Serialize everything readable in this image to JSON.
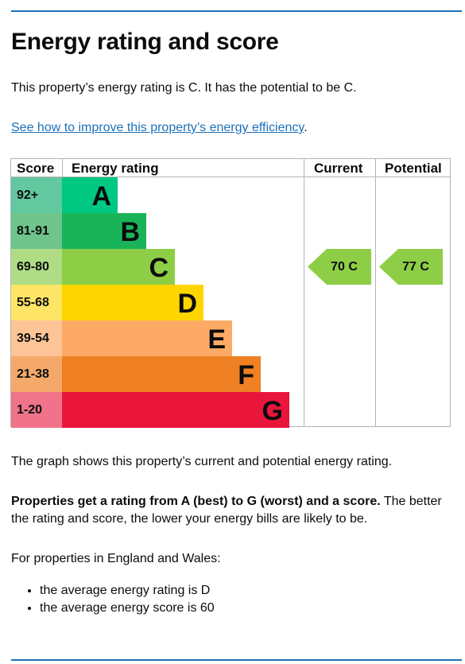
{
  "title": "Energy rating and score",
  "intro": "This property’s energy rating is C. It has the potential to be C.",
  "improve_link": "See how to improve this property’s energy efficiency",
  "improve_suffix": ".",
  "graph": {
    "headers": {
      "score": "Score",
      "rating": "Energy rating",
      "current": "Current",
      "potential": "Potential"
    },
    "bands": [
      {
        "score": "92+",
        "letter": "A",
        "color": "#00c781",
        "score_bg": "#62c89f"
      },
      {
        "score": "81-91",
        "letter": "B",
        "color": "#19b459",
        "score_bg": "#6ec48a"
      },
      {
        "score": "69-80",
        "letter": "C",
        "color": "#8dce46",
        "score_bg": "#b0dc85"
      },
      {
        "score": "55-68",
        "letter": "D",
        "color": "#ffd500",
        "score_bg": "#ffe566"
      },
      {
        "score": "39-54",
        "letter": "E",
        "color": "#fcaa65",
        "score_bg": "#fdc597"
      },
      {
        "score": "21-38",
        "letter": "F",
        "color": "#ef8023",
        "score_bg": "#f4a96b"
      },
      {
        "score": "1-20",
        "letter": "G",
        "color": "#e9153b",
        "score_bg": "#f0738a"
      }
    ],
    "current": {
      "label": "70  C",
      "band_index": 2,
      "color": "#8dce46"
    },
    "potential": {
      "label": "77  C",
      "band_index": 2,
      "color": "#8dce46"
    }
  },
  "graph_caption": "The graph shows this property’s current and potential energy rating.",
  "rating_bold": "Properties get a rating from A (best) to G (worst) and a score.",
  "rating_rest": " The better the rating and score, the lower your energy bills are likely to be.",
  "region_intro": "For properties in England and Wales:",
  "averages": [
    "the average energy rating is D",
    "the average energy score is 60"
  ]
}
